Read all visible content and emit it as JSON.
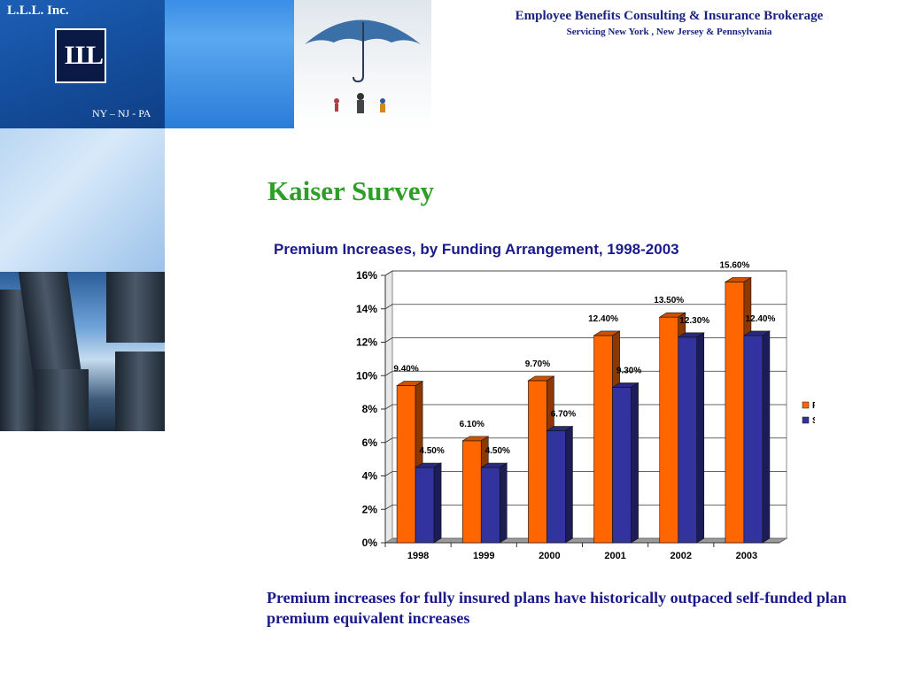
{
  "branding": {
    "company_name": "L.L.L. Inc.",
    "logo_text": "LLL",
    "region": "NY – NJ - PA"
  },
  "header": {
    "title": "Employee Benefits Consulting & Insurance Brokerage",
    "subtitle": "Servicing New York , New Jersey & Pennsylvania"
  },
  "slide": {
    "title": "Kaiser Survey",
    "caption": "Premium increases for fully insured plans have historically outpaced self-funded plan premium equivalent increases"
  },
  "chart_data": {
    "type": "bar",
    "title": "Premium Increases, by Funding Arrangement, 1998-2003",
    "categories": [
      "1998",
      "1999",
      "2000",
      "2001",
      "2002",
      "2003"
    ],
    "series": [
      {
        "name": "FULLY INSURED",
        "color": "#ff6600",
        "values": [
          9.4,
          6.1,
          9.7,
          12.4,
          13.5,
          15.6
        ],
        "labels": [
          "9.40%",
          "6.10%",
          "9.70%",
          "12.40%",
          "13.50%",
          "15.60%"
        ]
      },
      {
        "name": "SELF-FUNDED",
        "color": "#3333a0",
        "values": [
          4.5,
          4.5,
          6.7,
          9.3,
          12.3,
          12.4
        ],
        "labels": [
          "4.50%",
          "4.50%",
          "6.70%",
          "9.30%",
          "12.30%",
          "12.40%"
        ]
      }
    ],
    "ylim": [
      0,
      16
    ],
    "yticks": [
      "0%",
      "2%",
      "4%",
      "6%",
      "8%",
      "10%",
      "12%",
      "14%",
      "16%"
    ],
    "grid": true,
    "legend_position": "right"
  }
}
